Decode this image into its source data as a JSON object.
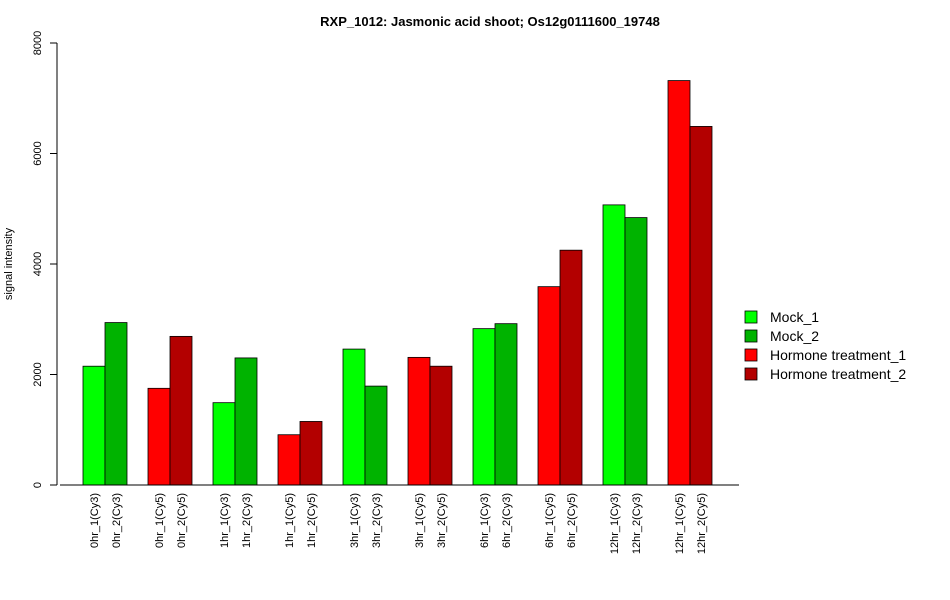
{
  "chart_data": {
    "type": "bar",
    "title": "RXP_1012: Jasmonic acid shoot; Os12g0111600_19748",
    "xlabel": "",
    "ylabel": "signal intensity",
    "ylim": [
      0,
      8000
    ],
    "yticks": [
      0,
      2000,
      4000,
      6000,
      8000
    ],
    "categories": [
      "0hr_1(Cy3)",
      "0hr_2(Cy3)",
      "0hr_1(Cy5)",
      "0hr_2(Cy5)",
      "1hr_1(Cy3)",
      "1hr_2(Cy3)",
      "1hr_1(Cy5)",
      "1hr_2(Cy5)",
      "3hr_1(Cy3)",
      "3hr_2(Cy3)",
      "3hr_1(Cy5)",
      "3hr_2(Cy5)",
      "6hr_1(Cy3)",
      "6hr_2(Cy3)",
      "6hr_1(Cy5)",
      "6hr_2(Cy5)",
      "12hr_1(Cy3)",
      "12hr_2(Cy3)",
      "12hr_1(Cy5)",
      "12hr_2(Cy5)"
    ],
    "values": [
      2150,
      2940,
      1750,
      2690,
      1490,
      2300,
      910,
      1150,
      2460,
      1790,
      2310,
      2150,
      2830,
      2920,
      3590,
      4250,
      5070,
      4840,
      7320,
      6490
    ],
    "bar_series": [
      0,
      1,
      2,
      3,
      0,
      1,
      2,
      3,
      0,
      1,
      2,
      3,
      0,
      1,
      2,
      3,
      0,
      1,
      2,
      3
    ],
    "series": [
      {
        "name": "Mock_1",
        "color": "#00ff00"
      },
      {
        "name": "Mock_2",
        "color": "#00b300"
      },
      {
        "name": "Hormone treatment_1",
        "color": "#ff0000"
      },
      {
        "name": "Hormone treatment_2",
        "color": "#b30000"
      }
    ],
    "legend_position": "right",
    "grid": false
  }
}
